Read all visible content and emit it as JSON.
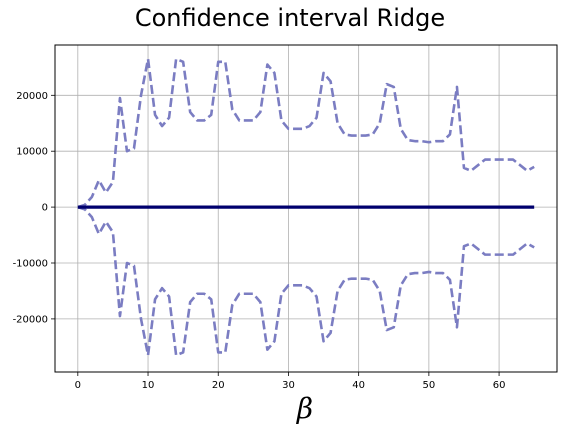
{
  "chart_data": {
    "type": "line",
    "title": "Confidence interval Ridge",
    "xlabel": "β",
    "ylabel": "",
    "xlim": [
      -3.25,
      68.25
    ],
    "ylim": [
      -29500,
      29000
    ],
    "xticks": [
      0,
      10,
      20,
      30,
      40,
      50,
      60
    ],
    "yticks": [
      -20000,
      -10000,
      0,
      10000,
      20000
    ],
    "grid": true,
    "x": [
      0,
      1,
      2,
      3,
      4,
      5,
      6,
      7,
      8,
      9,
      10,
      11,
      12,
      13,
      14,
      15,
      16,
      17,
      18,
      19,
      20,
      21,
      22,
      23,
      24,
      25,
      26,
      27,
      28,
      29,
      30,
      31,
      32,
      33,
      34,
      35,
      36,
      37,
      38,
      39,
      40,
      41,
      42,
      43,
      44,
      45,
      46,
      47,
      48,
      49,
      50,
      51,
      52,
      53,
      54,
      55,
      56,
      57,
      58,
      59,
      60,
      61,
      62,
      63,
      64,
      65
    ],
    "series": [
      {
        "role": "upper-bound",
        "color": "#7b7dc2",
        "style": "dashed",
        "values": [
          0,
          400,
          1800,
          4800,
          2600,
          4500,
          19500,
          10000,
          10500,
          20000,
          26500,
          16500,
          14500,
          16000,
          26500,
          26000,
          17000,
          15500,
          15500,
          16500,
          26000,
          26000,
          17500,
          15500,
          15500,
          15500,
          17000,
          25500,
          24000,
          15500,
          14000,
          14000,
          14000,
          14500,
          16000,
          24000,
          22500,
          15000,
          13000,
          12800,
          12800,
          12800,
          13000,
          15000,
          22000,
          21500,
          14000,
          12000,
          11800,
          11800,
          11600,
          11800,
          11800,
          13000,
          21500,
          7000,
          6500,
          7500,
          8500,
          8500,
          8500,
          8500,
          8500,
          7500,
          6500,
          7200
        ]
      },
      {
        "role": "lower-bound",
        "color": "#7b7dc2",
        "style": "dashed",
        "values": [
          0,
          -400,
          -1800,
          -4800,
          -2600,
          -4500,
          -19500,
          -10000,
          -10500,
          -20000,
          -26500,
          -16500,
          -14500,
          -16000,
          -26500,
          -26000,
          -17000,
          -15500,
          -15500,
          -16500,
          -26000,
          -26000,
          -17500,
          -15500,
          -15500,
          -15500,
          -17000,
          -25500,
          -24000,
          -15500,
          -14000,
          -14000,
          -14000,
          -14500,
          -16000,
          -24000,
          -22500,
          -15000,
          -13000,
          -12800,
          -12800,
          -12800,
          -13000,
          -15000,
          -22000,
          -21500,
          -14000,
          -12000,
          -11800,
          -11800,
          -11600,
          -11800,
          -11800,
          -13000,
          -21500,
          -7000,
          -6500,
          -7500,
          -8500,
          -8500,
          -8500,
          -8500,
          -8500,
          -7500,
          -6500,
          -7200
        ]
      },
      {
        "role": "estimate",
        "color": "#00006e",
        "style": "solid",
        "values": [
          0,
          0,
          0,
          0,
          0,
          0,
          0,
          0,
          0,
          0,
          0,
          0,
          0,
          0,
          0,
          0,
          0,
          0,
          0,
          0,
          0,
          0,
          0,
          0,
          0,
          0,
          0,
          0,
          0,
          0,
          0,
          0,
          0,
          0,
          0,
          0,
          0,
          0,
          0,
          0,
          0,
          0,
          0,
          0,
          0,
          0,
          0,
          0,
          0,
          0,
          0,
          0,
          0,
          0,
          0,
          0,
          0,
          0,
          0,
          0,
          0,
          0,
          0,
          0,
          0,
          0
        ]
      }
    ]
  }
}
